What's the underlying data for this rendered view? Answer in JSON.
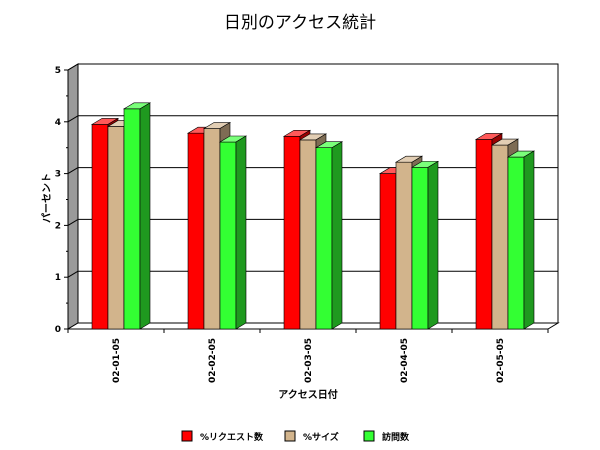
{
  "chart_data": {
    "type": "bar",
    "title": "日別のアクセス統計",
    "xlabel": "アクセス日付",
    "ylabel": "パーセント",
    "categories": [
      "02-01-05",
      "02-02-05",
      "02-03-05",
      "02-04-05",
      "02-05-05"
    ],
    "ylim": [
      0,
      5
    ],
    "yticks": [
      "0",
      "1",
      "2",
      "3",
      "4",
      "5"
    ],
    "grid": true,
    "legend_position": "bottom",
    "series": [
      {
        "name": "%リクエスト数",
        "color": "#ff0000",
        "values": [
          3.95,
          3.78,
          3.72,
          3.0,
          3.66
        ]
      },
      {
        "name": "%サイズ",
        "color": "#d2b48c",
        "values": [
          3.91,
          3.87,
          3.65,
          3.22,
          3.55
        ]
      },
      {
        "name": "訪問数",
        "color": "#33ff33",
        "values": [
          4.25,
          3.61,
          3.5,
          3.12,
          3.32
        ]
      }
    ]
  }
}
